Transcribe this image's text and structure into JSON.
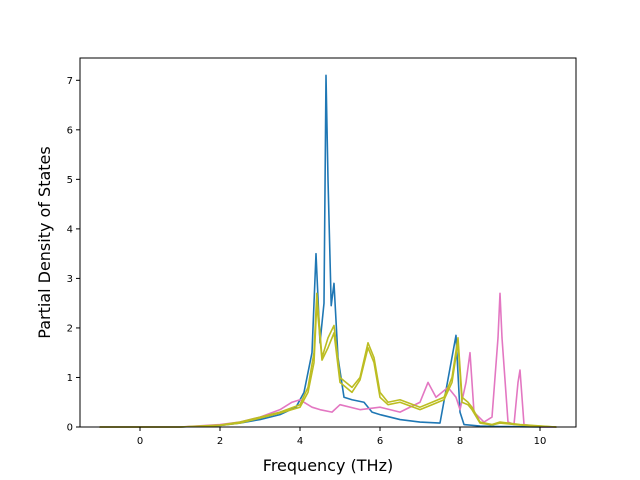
{
  "chart_data": {
    "type": "line",
    "title": "",
    "xlabel": "Frequency (THz)",
    "ylabel": "Partial Density of States",
    "xlim": [
      -1.5,
      10.9
    ],
    "ylim": [
      0,
      7.45
    ],
    "xticks": [
      0,
      2,
      4,
      6,
      8,
      10
    ],
    "yticks": [
      0,
      1,
      2,
      3,
      4,
      5,
      6,
      7
    ],
    "grid": false,
    "legend": "none",
    "series": [
      {
        "color": "#1f77b4",
        "x": [
          -1.0,
          0.0,
          1.0,
          2.0,
          2.5,
          3.0,
          3.5,
          3.9,
          4.1,
          4.3,
          4.4,
          4.5,
          4.6,
          4.65,
          4.7,
          4.78,
          4.85,
          4.95,
          5.1,
          5.3,
          5.6,
          5.8,
          6.0,
          6.5,
          7.0,
          7.5,
          7.9,
          8.0,
          8.1,
          8.5,
          9.0,
          10.0,
          10.4
        ],
        "y": [
          0,
          0,
          0,
          0.03,
          0.08,
          0.15,
          0.25,
          0.4,
          0.7,
          1.5,
          3.5,
          1.7,
          2.5,
          7.1,
          5.0,
          2.45,
          2.9,
          1.4,
          0.6,
          0.55,
          0.5,
          0.3,
          0.25,
          0.15,
          0.1,
          0.08,
          1.85,
          0.3,
          0.05,
          0.02,
          0.01,
          0.0,
          0.0
        ]
      },
      {
        "color": "#e377c2",
        "x": [
          -1.0,
          0.0,
          1.0,
          2.0,
          2.5,
          3.0,
          3.5,
          3.8,
          4.0,
          4.3,
          4.5,
          4.8,
          5.0,
          5.5,
          6.0,
          6.5,
          7.0,
          7.2,
          7.4,
          7.7,
          7.9,
          8.0,
          8.15,
          8.25,
          8.35,
          8.6,
          8.8,
          8.95,
          9.0,
          9.05,
          9.2,
          9.35,
          9.45,
          9.5,
          9.6,
          10.0,
          10.4
        ],
        "y": [
          0,
          0,
          0,
          0.05,
          0.1,
          0.2,
          0.35,
          0.5,
          0.55,
          0.4,
          0.35,
          0.3,
          0.45,
          0.35,
          0.4,
          0.3,
          0.5,
          0.9,
          0.6,
          0.8,
          0.6,
          0.35,
          0.9,
          1.5,
          0.3,
          0.1,
          0.2,
          1.8,
          2.7,
          1.8,
          0.1,
          0.05,
          0.9,
          1.15,
          0.05,
          0.0,
          0.0
        ]
      },
      {
        "color": "#bcbd22",
        "x": [
          -1.0,
          0.0,
          1.0,
          2.0,
          2.5,
          3.0,
          3.5,
          4.0,
          4.2,
          4.35,
          4.42,
          4.55,
          4.7,
          4.85,
          5.0,
          5.3,
          5.5,
          5.7,
          5.85,
          6.0,
          6.2,
          6.5,
          7.0,
          7.3,
          7.6,
          7.8,
          7.95,
          8.05,
          8.2,
          8.3,
          8.5,
          8.8,
          9.0,
          9.5,
          10.4
        ],
        "y": [
          0,
          0,
          0,
          0.04,
          0.1,
          0.2,
          0.3,
          0.45,
          0.8,
          1.5,
          2.7,
          1.4,
          1.8,
          2.05,
          1.0,
          0.8,
          1.0,
          1.7,
          1.4,
          0.7,
          0.5,
          0.55,
          0.4,
          0.5,
          0.6,
          1.0,
          1.8,
          0.6,
          0.5,
          0.4,
          0.1,
          0.05,
          0.1,
          0.05,
          0.0
        ]
      },
      {
        "color": "#bcbd22",
        "x": [
          -1.0,
          0.0,
          1.0,
          2.0,
          2.5,
          3.0,
          3.5,
          4.0,
          4.2,
          4.35,
          4.42,
          4.55,
          4.7,
          4.85,
          5.0,
          5.3,
          5.5,
          5.7,
          5.85,
          6.0,
          6.2,
          6.5,
          7.0,
          7.3,
          7.6,
          7.8,
          7.95,
          8.05,
          8.2,
          8.3,
          8.5,
          8.8,
          9.0,
          9.5,
          10.4
        ],
        "y": [
          0,
          0,
          0,
          0.03,
          0.08,
          0.18,
          0.28,
          0.4,
          0.7,
          1.3,
          2.5,
          1.35,
          1.6,
          1.9,
          0.9,
          0.7,
          0.95,
          1.6,
          1.3,
          0.6,
          0.45,
          0.5,
          0.35,
          0.45,
          0.55,
          0.9,
          1.7,
          0.5,
          0.45,
          0.35,
          0.08,
          0.04,
          0.08,
          0.04,
          0.0
        ]
      }
    ]
  }
}
